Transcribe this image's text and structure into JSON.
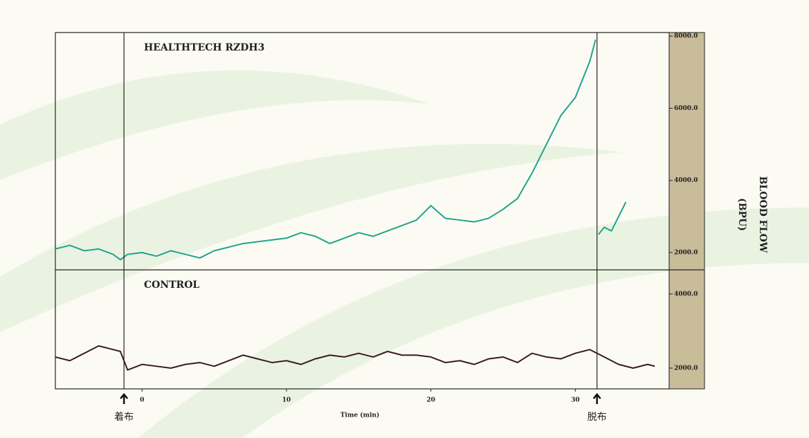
{
  "chart_data": [
    {
      "type": "line",
      "title": "HEALTHTECH RZDH3",
      "ylabel": [
        "BLOOD FLOW",
        "(BPU)"
      ],
      "x": [
        -6,
        -5,
        -4,
        -3,
        -2,
        -1.5,
        -1,
        0,
        1,
        2,
        3,
        4,
        5,
        6,
        7,
        8,
        9,
        10,
        11,
        12,
        13,
        14,
        15,
        16,
        17,
        18,
        19,
        20,
        21,
        22,
        23,
        24,
        25,
        26,
        27,
        28,
        29,
        30,
        31,
        31.4,
        31.5,
        31.6,
        32,
        32.5,
        33,
        33.5
      ],
      "series": [
        {
          "name": "HEALTHTECH RZDH3",
          "color": "#1fa38e",
          "values": [
            2100,
            2200,
            2050,
            2100,
            1950,
            1800,
            1950,
            2000,
            1900,
            2050,
            1950,
            1850,
            2050,
            2150,
            2250,
            2300,
            2350,
            2400,
            2550,
            2450,
            2250,
            2400,
            2550,
            2450,
            2600,
            2750,
            2900,
            3300,
            2950,
            2900,
            2850,
            2950,
            3200,
            3500,
            4200,
            5000,
            5800,
            6300,
            7300,
            7900,
            null,
            2500,
            2700,
            2600,
            3000,
            3400
          ]
        }
      ],
      "xlim": [
        -6,
        36.5
      ],
      "ylim": [
        1520,
        8100
      ],
      "yticks": [
        {
          "value": 2000,
          "label": "2000.0"
        },
        {
          "value": 4000,
          "label": "4000.0"
        },
        {
          "value": 6000,
          "label": "6000.0"
        },
        {
          "value": 8000,
          "label": "8000.0"
        }
      ]
    },
    {
      "type": "line",
      "title": "CONTROL",
      "xlabel": "Time (min)",
      "x": [
        -6,
        -5,
        -4,
        -3,
        -2,
        -1.5,
        -1,
        0,
        1,
        2,
        3,
        4,
        5,
        6,
        7,
        8,
        9,
        10,
        11,
        12,
        13,
        14,
        15,
        16,
        17,
        18,
        19,
        20,
        21,
        22,
        23,
        24,
        25,
        26,
        27,
        28,
        29,
        30,
        31,
        32,
        33,
        34,
        35,
        35.5
      ],
      "series": [
        {
          "name": "CONTROL",
          "color": "#3a1a22",
          "values": [
            2300,
            2200,
            2400,
            2600,
            2500,
            2450,
            1950,
            2100,
            2050,
            2000,
            2100,
            2150,
            2050,
            2200,
            2350,
            2250,
            2150,
            2200,
            2100,
            2250,
            2350,
            2300,
            2400,
            2300,
            2450,
            2350,
            2350,
            2300,
            2150,
            2200,
            2100,
            2250,
            2300,
            2150,
            2400,
            2300,
            2250,
            2400,
            2500,
            2300,
            2100,
            2000,
            2100,
            2050
          ]
        }
      ],
      "xlim": [
        -6,
        36.5
      ],
      "ylim": [
        1440,
        4650
      ],
      "xticks": [
        0,
        10,
        20,
        30
      ],
      "yticks": [
        {
          "value": 2000,
          "label": "2000.0"
        },
        {
          "value": 4000,
          "label": "4000.0"
        }
      ],
      "annotations": [
        {
          "x": -1.25,
          "label": "着布"
        },
        {
          "x": 31.5,
          "label": "脱布"
        }
      ]
    }
  ]
}
